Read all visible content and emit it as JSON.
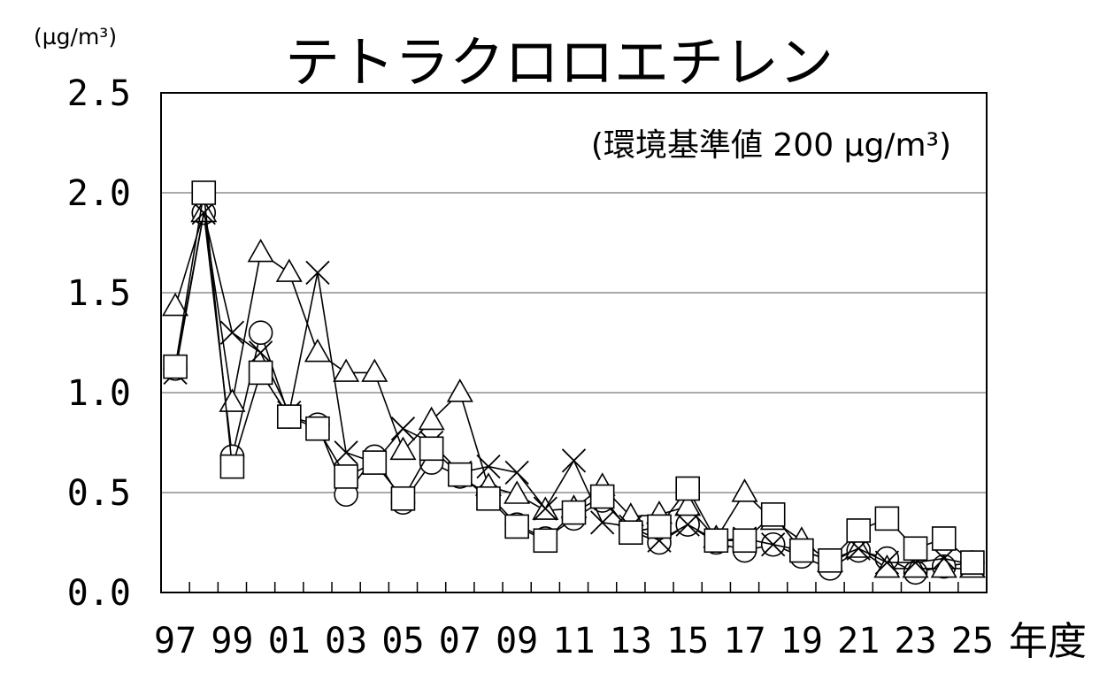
{
  "chart_data": {
    "type": "line",
    "title": "テトラクロロエチレン",
    "unit_label": "(µg/m³)",
    "note": "(環境基準値 200 µg/m³)",
    "xlabel": "年度",
    "ylabel": "",
    "ylim": [
      0,
      2.5
    ],
    "yticks": [
      "0.0",
      "0.5",
      "1.0",
      "1.5",
      "2.0",
      "2.5"
    ],
    "grid": true,
    "x": [
      "97",
      "98",
      "99",
      "00",
      "01",
      "02",
      "03",
      "04",
      "05",
      "06",
      "07",
      "08",
      "09",
      "10",
      "11",
      "12",
      "13",
      "14",
      "15",
      "16",
      "17",
      "18",
      "19",
      "20",
      "21",
      "22",
      "23",
      "24",
      "25"
    ],
    "xtick_labels": [
      "97",
      "99",
      "01",
      "03",
      "05",
      "07",
      "09",
      "11",
      "13",
      "15",
      "17",
      "19",
      "21",
      "23",
      "25"
    ],
    "series": [
      {
        "marker": "circle",
        "values": [
          1.12,
          1.9,
          0.68,
          1.3,
          0.88,
          0.84,
          0.49,
          0.68,
          0.45,
          0.65,
          0.58,
          0.49,
          0.34,
          0.27,
          0.37,
          0.46,
          0.31,
          0.25,
          0.34,
          0.25,
          0.21,
          0.24,
          0.18,
          0.12,
          0.21,
          0.17,
          0.1,
          0.13,
          0.15
        ]
      },
      {
        "marker": "triangle",
        "values": [
          1.43,
          1.9,
          0.95,
          1.7,
          1.6,
          1.2,
          1.1,
          1.1,
          0.71,
          0.86,
          1.0,
          0.53,
          0.49,
          0.41,
          0.42,
          0.53,
          0.38,
          0.39,
          0.43,
          0.27,
          0.5,
          0.36,
          0.26,
          0.15,
          0.22,
          0.12,
          0.12,
          0.12,
          0.12
        ]
      },
      {
        "marker": "cross",
        "values": [
          1.1,
          1.9,
          1.3,
          1.2,
          0.9,
          1.6,
          0.7,
          0.65,
          0.82,
          0.75,
          0.6,
          0.63,
          0.6,
          0.42,
          0.66,
          0.35,
          0.33,
          0.26,
          0.34,
          0.26,
          0.27,
          0.24,
          0.21,
          0.16,
          0.22,
          0.15,
          0.15,
          0.17,
          0.14
        ]
      },
      {
        "marker": "square",
        "values": [
          1.13,
          2.0,
          0.63,
          1.1,
          0.88,
          0.82,
          0.58,
          0.65,
          0.47,
          0.72,
          0.59,
          0.47,
          0.33,
          0.26,
          0.4,
          0.48,
          0.3,
          0.33,
          0.52,
          0.26,
          0.26,
          0.39,
          0.21,
          0.16,
          0.31,
          0.37,
          0.22,
          0.27,
          0.15
        ]
      }
    ]
  }
}
